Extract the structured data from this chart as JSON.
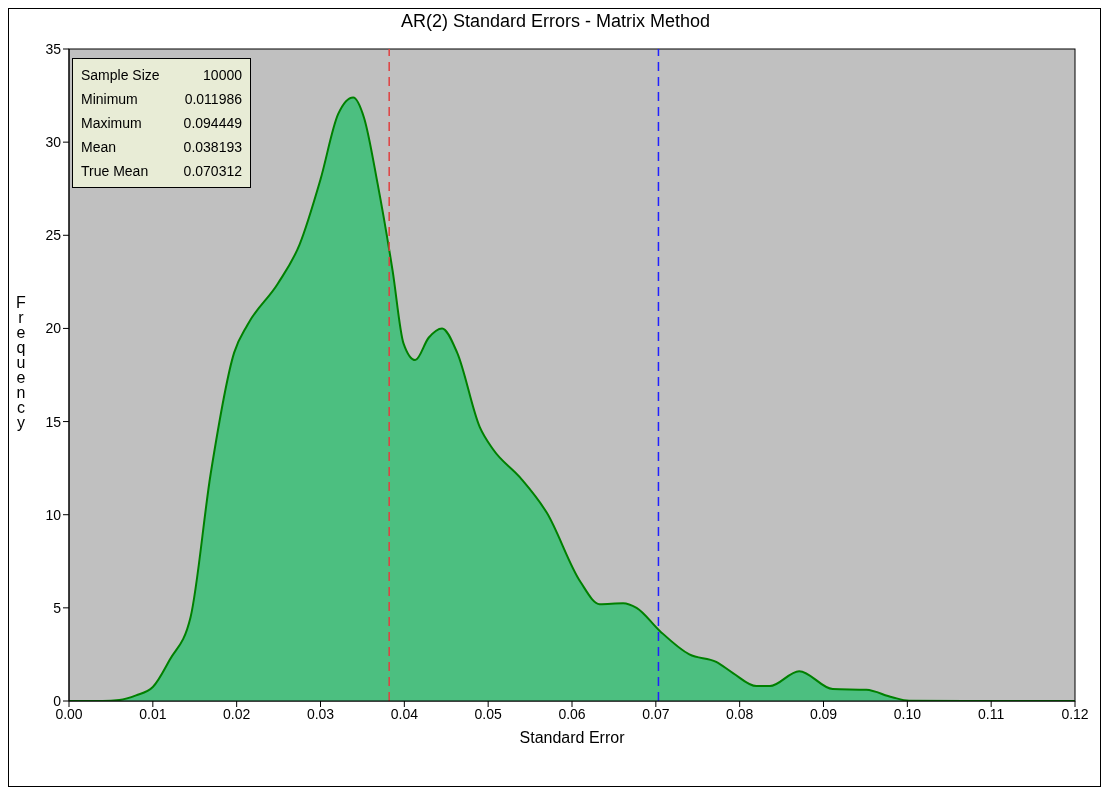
{
  "chart_data": {
    "type": "area",
    "title": "AR(2) Standard Errors - Matrix Method",
    "xlabel": "Standard Error",
    "ylabel": "Frequency",
    "x": [
      0,
      0.004,
      0.006,
      0.008,
      0.01,
      0.012,
      0.0145,
      0.0169,
      0.0197,
      0.0213,
      0.0249,
      0.0275,
      0.03,
      0.0321,
      0.0339,
      0.0352,
      0.0368,
      0.0386,
      0.0399,
      0.0413,
      0.0429,
      0.0445,
      0.0463,
      0.049,
      0.0506,
      0.0538,
      0.057,
      0.061,
      0.0633,
      0.0661,
      0.0677,
      0.0705,
      0.074,
      0.0772,
      0.0792,
      0.082,
      0.0836,
      0.0871,
      0.0911,
      0.0951,
      0.0982,
      0.1002,
      0.11,
      0.12
    ],
    "series": [
      {
        "color": "#4cbf80",
        "values": [
          0,
          0,
          0.05,
          0.3,
          0.75,
          2.2,
          4.5,
          12.2,
          18.7,
          20.2,
          22.4,
          24.5,
          28,
          31.5,
          32.4,
          31.3,
          27.8,
          23.1,
          19.2,
          18.3,
          19.5,
          20,
          18.7,
          14.7,
          13.5,
          12,
          10.1,
          6.4,
          5.2,
          5.25,
          5,
          3.75,
          2.5,
          2.1,
          1.5,
          0.8,
          0.8,
          1.6,
          0.64,
          0.6,
          0.2,
          0.02,
          0,
          0
        ]
      }
    ],
    "xlim": [
      0,
      0.12
    ],
    "xticks": [
      {
        "value": 0,
        "label": "0.00"
      },
      {
        "value": 0.01,
        "label": "0.01"
      },
      {
        "value": 0.02,
        "label": "0.02"
      },
      {
        "value": 0.03,
        "label": "0.03"
      },
      {
        "value": 0.04,
        "label": "0.04"
      },
      {
        "value": 0.05,
        "label": "0.05"
      },
      {
        "value": 0.06,
        "label": "0.06"
      },
      {
        "value": 0.07,
        "label": "0.07"
      },
      {
        "value": 0.08,
        "label": "0.08"
      },
      {
        "value": 0.09,
        "label": "0.09"
      },
      {
        "value": 0.1,
        "label": "0.10"
      },
      {
        "value": 0.11,
        "label": "0.11"
      },
      {
        "value": 0.12,
        "label": "0.12"
      }
    ],
    "ylim": [
      0,
      35
    ],
    "yticks": [
      0,
      5,
      10,
      15,
      20,
      25,
      30,
      35
    ],
    "ref_lines": [
      {
        "axis": "x",
        "value": 0.038193,
        "color": "#e04040",
        "line_style": "dashed"
      },
      {
        "axis": "x",
        "value": 0.070312,
        "color": "#2020ff",
        "line_style": "dashed"
      }
    ],
    "annotations": [
      "Sample Size",
      "10000",
      "Minimum",
      "0.011986",
      "Maximum",
      "0.094449",
      "Mean",
      "0.038193",
      "True Mean",
      "0.070312"
    ]
  }
}
